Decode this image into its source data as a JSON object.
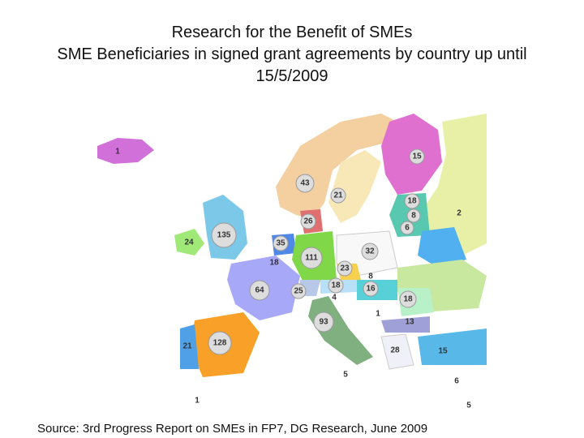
{
  "header": {
    "title_lines": [
      "Research for the Benefit of SMEs",
      "SME Beneficiaries in signed grant agreements by country up until",
      "15/5/2009"
    ]
  },
  "map": {
    "labels": [
      1,
      15,
      43,
      21,
      18,
      2,
      8,
      6,
      26,
      135,
      24,
      35,
      32,
      18,
      111,
      23,
      8,
      64,
      25,
      18,
      16,
      4,
      18,
      93,
      1,
      13,
      128,
      21,
      28,
      15,
      5,
      6,
      1,
      5
    ]
  },
  "footer": {
    "source": "Source:  3rd Progress Report on SMEs in FP7, DG Research, June 2009"
  }
}
